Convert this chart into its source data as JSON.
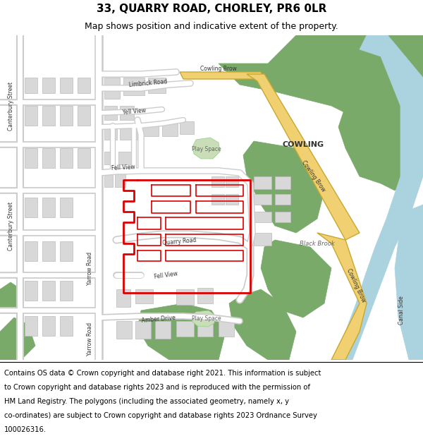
{
  "title_line1": "33, QUARRY ROAD, CHORLEY, PR6 0LR",
  "title_line2": "Map shows position and indicative extent of the property.",
  "footer_lines": [
    "Contains OS data © Crown copyright and database right 2021. This information is subject",
    "to Crown copyright and database rights 2023 and is reproduced with the permission of",
    "HM Land Registry. The polygons (including the associated geometry, namely x, y",
    "co-ordinates) are subject to Crown copyright and database rights 2023 Ordnance Survey",
    "100026316."
  ],
  "title_fontsize": 11,
  "subtitle_fontsize": 9,
  "footer_fontsize": 7.2,
  "map_bg": "#eeebe6",
  "road_white": "#ffffff",
  "road_outline": "#cccccc",
  "green_dark": "#7aaa6a",
  "green_light": "#c8ddb8",
  "water_blue": "#aad3df",
  "building_fill": "#d8d8d8",
  "building_edge": "#bbbbbb",
  "yellow_road_fill": "#f0d070",
  "yellow_road_edge": "#c8a832",
  "red_line": "#dd0000",
  "label_dark": "#333333",
  "label_mid": "#666666",
  "cowling_label": "#444444"
}
